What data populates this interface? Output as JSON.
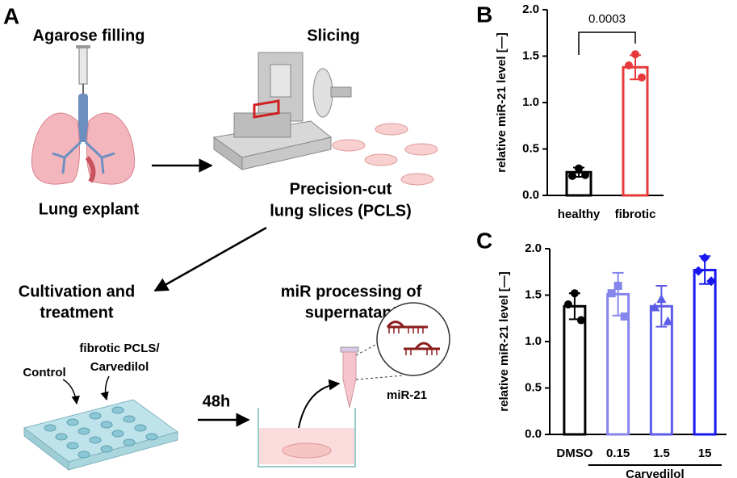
{
  "panel_a": {
    "label": "A",
    "agarose": "Agarose filling",
    "lung": "Lung explant",
    "slicing": "Slicing",
    "pcls": [
      "Precision-cut",
      "lung slices (PCLS)"
    ],
    "cultivation": [
      "Cultivation and",
      "treatment"
    ],
    "processing": [
      "miR processing of",
      "supernatant"
    ],
    "fibrotic": [
      "fibrotic PCLS/",
      "Carvedilol"
    ],
    "control": "Control",
    "time": "48h",
    "mirna": "miR-21"
  },
  "chart_data": [
    {
      "type": "bar",
      "panel": "B",
      "ylabel": "relative miR-21 level [—]",
      "categories": [
        "healthy",
        "fibrotic"
      ],
      "values": [
        0.25,
        1.38
      ],
      "errors": [
        0.05,
        0.13
      ],
      "points": [
        [
          0.29,
          0.21,
          0.22
        ],
        [
          1.52,
          1.4,
          1.27
        ]
      ],
      "colors": [
        "#000000",
        "#e83a3a"
      ],
      "markers": [
        "circle",
        "circle"
      ],
      "annotation": "0.0003",
      "ylim": [
        0,
        2
      ],
      "yticks": [
        {
          "value": 0,
          "label": "0.0"
        },
        {
          "value": 0.5,
          "label": "0.5"
        },
        {
          "value": 1,
          "label": "1.0"
        },
        {
          "value": 1.5,
          "label": "1.5"
        },
        {
          "value": 2,
          "label": "2.0"
        }
      ]
    },
    {
      "type": "bar",
      "panel": "C",
      "ylabel": "relative miR-21 level [—]",
      "categories": [
        "DMSO",
        "0.15",
        "1.5",
        "15"
      ],
      "values": [
        1.38,
        1.51,
        1.38,
        1.77
      ],
      "errors": [
        0.14,
        0.23,
        0.22,
        0.15
      ],
      "points": [
        [
          1.52,
          1.4,
          1.23
        ],
        [
          1.6,
          1.52,
          1.27
        ],
        [
          1.46,
          1.37,
          1.22
        ],
        [
          1.9,
          1.76,
          1.65
        ]
      ],
      "colors": [
        "#000000",
        "#8585ee",
        "#5c5ce6",
        "#1818ee"
      ],
      "markers": [
        "circle",
        "square",
        "triangle",
        "diamond"
      ],
      "group_label": "Carvedilol",
      "ylim": [
        0,
        2
      ],
      "yticks": [
        {
          "value": 0,
          "label": "0.0"
        },
        {
          "value": 0.5,
          "label": "0.5"
        },
        {
          "value": 1,
          "label": "1.0"
        },
        {
          "value": 1.5,
          "label": "1.5"
        },
        {
          "value": 2,
          "label": "2.0"
        }
      ]
    }
  ]
}
